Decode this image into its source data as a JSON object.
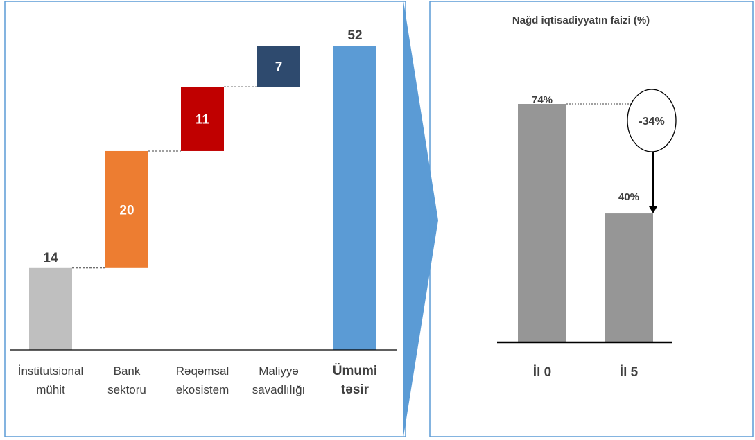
{
  "chart_data": [
    {
      "type": "waterfall",
      "categories": [
        "İnstitutsional mühit",
        "Bank sektoru",
        "Rəqəmsal ekosistem",
        "Maliyyə savadlılığı",
        "Ümumi təsir"
      ],
      "category_lines": [
        [
          "İnstitutsional",
          "mühit"
        ],
        [
          "Bank",
          "sektoru"
        ],
        [
          "Rəqəmsal",
          "ekosistem"
        ],
        [
          "Maliyyə",
          "savadlılığı"
        ],
        [
          "Ümumi",
          "təsir"
        ]
      ],
      "values": [
        14,
        20,
        11,
        7,
        52
      ],
      "value_labels": [
        "14",
        "20",
        "11",
        "7",
        "52"
      ],
      "is_total": [
        false,
        false,
        false,
        false,
        true
      ],
      "colors": [
        "#bfbfbf",
        "#ed7d31",
        "#c00000",
        "#2e4a6e",
        "#5b9bd5"
      ],
      "ylim": [
        0,
        56
      ]
    },
    {
      "type": "bar",
      "title": "Nağd iqtisadiyyatın faizi (%)",
      "categories": [
        "İl 0",
        "İl 5"
      ],
      "values": [
        74,
        40
      ],
      "value_labels": [
        "74%",
        "40%"
      ],
      "change_label": "-34%",
      "color": "#969696",
      "ylim": [
        0,
        80
      ]
    }
  ],
  "colors": {
    "panel_border": "#5b9bd5",
    "arrow": "#5b9bd5",
    "axis": "#000000"
  }
}
